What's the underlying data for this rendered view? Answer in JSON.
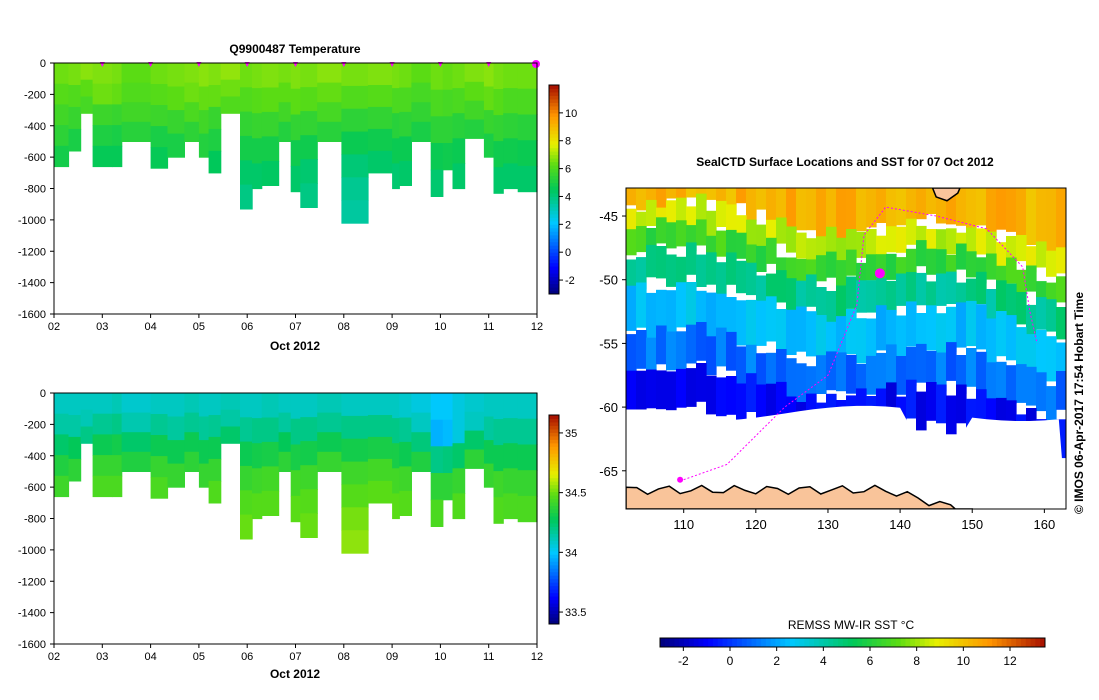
{
  "chart_data": [
    {
      "id": "temp",
      "type": "heatmap",
      "title": "Q9900487  Temperature",
      "xlabel": "Oct 2012",
      "ylabel": "",
      "x_ticks": [
        "02",
        "03",
        "04",
        "05",
        "06",
        "07",
        "08",
        "09",
        "10",
        "11",
        "12"
      ],
      "xlim": [
        2,
        12
      ],
      "y_ticks": [
        "0",
        "-200",
        "-400",
        "-600",
        "-800",
        "-1000",
        "-1200",
        "-1400",
        "-1600"
      ],
      "ylim": [
        -1600,
        0
      ],
      "colorbar": {
        "ticks": [
          "-2",
          "0",
          "2",
          "4",
          "6",
          "8",
          "10"
        ],
        "range": [
          -3,
          12
        ]
      },
      "surface_markers": [
        3.0,
        4.0,
        5.0,
        6.0,
        7.0,
        8.0,
        9.0,
        10.0,
        11.0,
        12.0
      ],
      "profiles": [
        {
          "x": 2.0,
          "w": 0.3,
          "depth": -660,
          "values": [
            6.5,
            6.2,
            5.8,
            5.4,
            4.9
          ]
        },
        {
          "x": 2.3,
          "w": 0.25,
          "depth": -560,
          "values": [
            6.6,
            6.1,
            5.6,
            5.0
          ]
        },
        {
          "x": 2.55,
          "w": 0.25,
          "depth": -320,
          "values": [
            6.8,
            6.3,
            5.9
          ]
        },
        {
          "x": 2.8,
          "w": 0.4,
          "depth": -660,
          "values": [
            6.7,
            6.5,
            5.7,
            5.1,
            4.6
          ]
        },
        {
          "x": 3.2,
          "w": 0.2,
          "depth": -660,
          "values": [
            6.6,
            6.4,
            5.6,
            5.0,
            4.6
          ]
        },
        {
          "x": 3.4,
          "w": 0.6,
          "depth": -500,
          "values": [
            6.3,
            6.1,
            5.8,
            5.3
          ]
        },
        {
          "x": 4.0,
          "w": 0.35,
          "depth": -670,
          "values": [
            6.5,
            6.2,
            5.7,
            5.0,
            4.6
          ]
        },
        {
          "x": 4.35,
          "w": 0.35,
          "depth": -600,
          "values": [
            6.6,
            6.3,
            5.6,
            5.0
          ]
        },
        {
          "x": 4.7,
          "w": 0.3,
          "depth": -500,
          "values": [
            6.7,
            6.5,
            6.0,
            5.4
          ]
        },
        {
          "x": 5.0,
          "w": 0.2,
          "depth": -600,
          "values": [
            6.8,
            6.4,
            5.8,
            5.2
          ]
        },
        {
          "x": 5.2,
          "w": 0.25,
          "depth": -700,
          "values": [
            6.7,
            6.4,
            5.6,
            5.1,
            4.5
          ]
        },
        {
          "x": 5.45,
          "w": 0.4,
          "depth": -320,
          "values": [
            6.9,
            6.5,
            6.1
          ]
        },
        {
          "x": 5.85,
          "w": 0.25,
          "depth": -930,
          "values": [
            6.5,
            6.1,
            5.5,
            4.9,
            4.3,
            3.9
          ]
        },
        {
          "x": 6.1,
          "w": 0.2,
          "depth": -800,
          "values": [
            6.6,
            6.2,
            5.6,
            4.9,
            4.3
          ]
        },
        {
          "x": 6.3,
          "w": 0.35,
          "depth": -780,
          "values": [
            6.7,
            6.3,
            5.6,
            4.9,
            4.4
          ]
        },
        {
          "x": 6.65,
          "w": 0.35,
          "depth": -500,
          "values": [
            6.6,
            6.3,
            5.8,
            5.2
          ]
        },
        {
          "x": 6.9,
          "w": 0.2,
          "depth": -820,
          "values": [
            6.7,
            6.3,
            5.5,
            4.8,
            4.3
          ]
        },
        {
          "x": 7.1,
          "w": 0.35,
          "depth": -920,
          "values": [
            6.6,
            6.2,
            5.5,
            4.8,
            4.2,
            3.9
          ]
        },
        {
          "x": 7.45,
          "w": 0.5,
          "depth": -500,
          "values": [
            6.8,
            6.4,
            5.9,
            5.3
          ]
        },
        {
          "x": 7.95,
          "w": 0.55,
          "depth": -1020,
          "values": [
            6.6,
            6.1,
            5.4,
            4.7,
            4.1,
            3.7,
            3.5
          ]
        },
        {
          "x": 8.5,
          "w": 0.5,
          "depth": -700,
          "values": [
            6.7,
            6.2,
            5.5,
            4.8,
            4.3
          ]
        },
        {
          "x": 9.0,
          "w": 0.15,
          "depth": -800,
          "values": [
            6.6,
            6.0,
            5.3,
            4.7,
            4.2
          ]
        },
        {
          "x": 9.15,
          "w": 0.25,
          "depth": -780,
          "values": [
            6.5,
            6.0,
            5.4,
            4.7,
            4.3
          ]
        },
        {
          "x": 9.4,
          "w": 0.4,
          "depth": -500,
          "values": [
            6.3,
            5.9,
            5.5,
            5.0
          ]
        },
        {
          "x": 9.8,
          "w": 0.25,
          "depth": -850,
          "values": [
            6.5,
            6.0,
            5.4,
            4.7,
            4.2
          ]
        },
        {
          "x": 10.05,
          "w": 0.2,
          "depth": -680,
          "values": [
            6.4,
            5.9,
            5.4,
            4.8
          ]
        },
        {
          "x": 10.25,
          "w": 0.25,
          "depth": -800,
          "values": [
            6.5,
            6.0,
            5.3,
            4.7,
            4.3
          ]
        },
        {
          "x": 10.5,
          "w": 0.4,
          "depth": -480,
          "values": [
            6.7,
            6.3,
            5.8,
            5.2
          ]
        },
        {
          "x": 10.9,
          "w": 0.2,
          "depth": -600,
          "values": [
            6.8,
            6.4,
            5.6,
            5.0
          ]
        },
        {
          "x": 11.1,
          "w": 0.2,
          "depth": -830,
          "values": [
            6.6,
            6.2,
            5.5,
            4.8,
            4.3
          ]
        },
        {
          "x": 11.3,
          "w": 0.3,
          "depth": -800,
          "values": [
            6.5,
            6.0,
            5.4,
            4.8,
            4.3
          ]
        },
        {
          "x": 11.6,
          "w": 0.4,
          "depth": -820,
          "values": [
            6.5,
            6.0,
            5.3,
            4.7,
            4.3
          ]
        }
      ]
    },
    {
      "id": "salt",
      "type": "heatmap",
      "title": "",
      "xlabel": "Oct 2012",
      "ylabel": "",
      "x_ticks": [
        "02",
        "03",
        "04",
        "05",
        "06",
        "07",
        "08",
        "09",
        "10",
        "11",
        "12"
      ],
      "xlim": [
        2,
        12
      ],
      "y_ticks": [
        "0",
        "-200",
        "-400",
        "-600",
        "-800",
        "-1000",
        "-1200",
        "-1400",
        "-1600"
      ],
      "ylim": [
        -1600,
        0
      ],
      "colorbar": {
        "ticks": [
          "33.5",
          "34",
          "34.5",
          "35"
        ],
        "range": [
          33.4,
          35.15
        ]
      },
      "profiles": [
        {
          "x": 2.0,
          "w": 0.3,
          "depth": -660,
          "values": [
            34.1,
            34.15,
            34.25,
            34.35,
            34.42
          ]
        },
        {
          "x": 2.3,
          "w": 0.25,
          "depth": -560,
          "values": [
            34.1,
            34.15,
            34.28,
            34.38
          ]
        },
        {
          "x": 2.55,
          "w": 0.25,
          "depth": -320,
          "values": [
            34.1,
            34.12,
            34.2
          ]
        },
        {
          "x": 2.8,
          "w": 0.4,
          "depth": -660,
          "values": [
            34.1,
            34.18,
            34.3,
            34.4,
            34.45
          ]
        },
        {
          "x": 3.2,
          "w": 0.2,
          "depth": -660,
          "values": [
            34.12,
            34.2,
            34.32,
            34.4,
            34.45
          ]
        },
        {
          "x": 3.4,
          "w": 0.6,
          "depth": -500,
          "values": [
            34.08,
            34.13,
            34.25,
            34.35
          ]
        },
        {
          "x": 4.0,
          "w": 0.35,
          "depth": -670,
          "values": [
            34.1,
            34.18,
            34.3,
            34.4,
            34.45
          ]
        },
        {
          "x": 4.35,
          "w": 0.35,
          "depth": -600,
          "values": [
            34.1,
            34.16,
            34.3,
            34.4
          ]
        },
        {
          "x": 4.7,
          "w": 0.3,
          "depth": -500,
          "values": [
            34.12,
            34.18,
            34.3,
            34.38
          ]
        },
        {
          "x": 5.0,
          "w": 0.2,
          "depth": -600,
          "values": [
            34.1,
            34.17,
            34.3,
            34.4
          ]
        },
        {
          "x": 5.2,
          "w": 0.25,
          "depth": -700,
          "values": [
            34.1,
            34.18,
            34.3,
            34.4,
            34.46
          ]
        },
        {
          "x": 5.45,
          "w": 0.4,
          "depth": -320,
          "values": [
            34.12,
            34.15,
            34.25
          ]
        },
        {
          "x": 5.85,
          "w": 0.25,
          "depth": -930,
          "values": [
            34.1,
            34.18,
            34.3,
            34.4,
            34.46,
            34.5
          ]
        },
        {
          "x": 6.1,
          "w": 0.2,
          "depth": -800,
          "values": [
            34.1,
            34.2,
            34.32,
            34.42,
            34.47
          ]
        },
        {
          "x": 6.3,
          "w": 0.35,
          "depth": -780,
          "values": [
            34.12,
            34.2,
            34.33,
            34.43,
            34.47
          ]
        },
        {
          "x": 6.65,
          "w": 0.35,
          "depth": -500,
          "values": [
            34.1,
            34.16,
            34.28,
            34.38
          ]
        },
        {
          "x": 6.9,
          "w": 0.2,
          "depth": -820,
          "values": [
            34.1,
            34.2,
            34.33,
            34.43,
            34.48
          ]
        },
        {
          "x": 7.1,
          "w": 0.35,
          "depth": -920,
          "values": [
            34.1,
            34.2,
            34.32,
            34.42,
            34.47,
            34.5
          ]
        },
        {
          "x": 7.45,
          "w": 0.5,
          "depth": -500,
          "values": [
            34.12,
            34.18,
            34.3,
            34.4
          ]
        },
        {
          "x": 7.95,
          "w": 0.55,
          "depth": -1020,
          "values": [
            34.1,
            34.2,
            34.32,
            34.42,
            34.47,
            34.52,
            34.55
          ]
        },
        {
          "x": 8.5,
          "w": 0.5,
          "depth": -700,
          "values": [
            34.1,
            34.2,
            34.33,
            34.43,
            34.48
          ]
        },
        {
          "x": 9.0,
          "w": 0.15,
          "depth": -800,
          "values": [
            34.1,
            34.2,
            34.33,
            34.43,
            34.48
          ]
        },
        {
          "x": 9.15,
          "w": 0.25,
          "depth": -780,
          "values": [
            34.08,
            34.18,
            34.3,
            34.42,
            34.47
          ]
        },
        {
          "x": 9.4,
          "w": 0.4,
          "depth": -500,
          "values": [
            34.05,
            34.1,
            34.22,
            34.35
          ]
        },
        {
          "x": 9.8,
          "w": 0.25,
          "depth": -850,
          "values": [
            34.0,
            33.95,
            34.2,
            34.38,
            34.45
          ]
        },
        {
          "x": 10.05,
          "w": 0.2,
          "depth": -680,
          "values": [
            34.0,
            33.97,
            34.22,
            34.38
          ]
        },
        {
          "x": 10.25,
          "w": 0.25,
          "depth": -800,
          "values": [
            34.05,
            34.05,
            34.25,
            34.4,
            34.46
          ]
        },
        {
          "x": 10.5,
          "w": 0.4,
          "depth": -480,
          "values": [
            34.08,
            34.1,
            34.25,
            34.38
          ]
        },
        {
          "x": 10.9,
          "w": 0.2,
          "depth": -600,
          "values": [
            34.1,
            34.16,
            34.3,
            34.4
          ]
        },
        {
          "x": 11.1,
          "w": 0.2,
          "depth": -830,
          "values": [
            34.1,
            34.18,
            34.3,
            34.42,
            34.46
          ]
        },
        {
          "x": 11.3,
          "w": 0.3,
          "depth": -800,
          "values": [
            34.1,
            34.18,
            34.3,
            34.4,
            34.45
          ]
        },
        {
          "x": 11.6,
          "w": 0.4,
          "depth": -820,
          "values": [
            34.1,
            34.18,
            34.3,
            34.4,
            34.45
          ]
        }
      ]
    },
    {
      "id": "map",
      "type": "heatmap",
      "title": "SealCTD Surface Locations and SST for 07 Oct 2012",
      "x_ticks": [
        "110",
        "120",
        "130",
        "140",
        "150",
        "160"
      ],
      "xlim": [
        102,
        163
      ],
      "y_ticks": [
        "-45",
        "-50",
        "-55",
        "-60",
        "-65"
      ],
      "ylim": [
        -68,
        -42.8
      ],
      "colorbar": {
        "label": "REMSS MW-IR SST °C",
        "ticks": [
          "-2",
          "0",
          "2",
          "4",
          "6",
          "8",
          "10",
          "12"
        ],
        "range": [
          -3,
          13.5
        ]
      },
      "sst_bands": [
        {
          "lat_top": -42.8,
          "lat_bottom": -45.5,
          "sst": 10.5
        },
        {
          "lat_top": -45.5,
          "lat_bottom": -47.5,
          "sst": 8.5
        },
        {
          "lat_top": -47.5,
          "lat_bottom": -49.5,
          "sst": 6.5
        },
        {
          "lat_top": -49.5,
          "lat_bottom": -52.0,
          "sst": 4.5
        },
        {
          "lat_top": -52.0,
          "lat_bottom": -55.5,
          "sst": 2.5
        },
        {
          "lat_top": -55.5,
          "lat_bottom": -58.5,
          "sst": 1.0
        },
        {
          "lat_top": -58.5,
          "lat_bottom": -61.5,
          "sst": -1.0
        }
      ],
      "ice_edge_lat": -60.5,
      "coast_lat": -66.5,
      "track": [
        [
          110,
          -65.7
        ],
        [
          116,
          -64.5
        ],
        [
          124,
          -60.0
        ],
        [
          130,
          -57.5
        ],
        [
          134,
          -52.0
        ],
        [
          135,
          -46.5
        ],
        [
          138,
          -44.3
        ],
        [
          145,
          -45.0
        ],
        [
          152,
          -46.0
        ],
        [
          157,
          -49.0
        ],
        [
          158,
          -52.5
        ],
        [
          159,
          -55.0
        ]
      ],
      "current_position": [
        137.2,
        -49.5
      ],
      "start_position": [
        109.5,
        -65.7
      ]
    }
  ],
  "credit": "© IMOS 06-Apr-2017 17:54 Hobart Time"
}
